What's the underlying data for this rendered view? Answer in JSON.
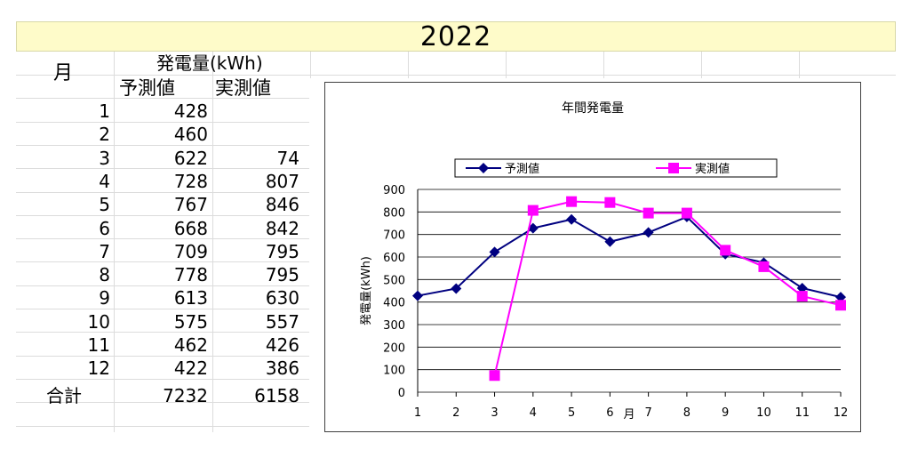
{
  "year_title": "2022",
  "table": {
    "month_header": "月",
    "gen_header": "発電量(kWh)",
    "pred_header": "予測値",
    "actual_header": "実測値",
    "rows": [
      {
        "month": "1",
        "pred": "428",
        "actual": ""
      },
      {
        "month": "2",
        "pred": "460",
        "actual": ""
      },
      {
        "month": "3",
        "pred": "622",
        "actual": "74"
      },
      {
        "month": "4",
        "pred": "728",
        "actual": "807"
      },
      {
        "month": "5",
        "pred": "767",
        "actual": "846"
      },
      {
        "month": "6",
        "pred": "668",
        "actual": "842"
      },
      {
        "month": "7",
        "pred": "709",
        "actual": "795"
      },
      {
        "month": "8",
        "pred": "778",
        "actual": "795"
      },
      {
        "month": "9",
        "pred": "613",
        "actual": "630"
      },
      {
        "month": "10",
        "pred": "575",
        "actual": "557"
      },
      {
        "month": "11",
        "pred": "462",
        "actual": "426"
      },
      {
        "month": "12",
        "pred": "422",
        "actual": "386"
      }
    ],
    "total_label": "合計",
    "total_pred": "7232",
    "total_actual": "6158"
  },
  "colors": {
    "title_bg": "#fefbc9",
    "series_pred": "#000080",
    "series_actual": "#ff00ff"
  },
  "chart_data": {
    "type": "line",
    "title": "年間発電量",
    "xlabel": "月",
    "ylabel": "発電量(kWh)",
    "x": [
      1,
      2,
      3,
      4,
      5,
      6,
      7,
      8,
      9,
      10,
      11,
      12
    ],
    "ylim": [
      0,
      900
    ],
    "yticks": [
      0,
      100,
      200,
      300,
      400,
      500,
      600,
      700,
      800,
      900
    ],
    "grid": true,
    "legend_position": "top",
    "series": [
      {
        "name": "予測値",
        "marker": "diamond",
        "color": "#000080",
        "values": [
          428,
          460,
          622,
          728,
          767,
          668,
          709,
          778,
          613,
          575,
          462,
          422
        ]
      },
      {
        "name": "実測値",
        "marker": "square",
        "color": "#ff00ff",
        "values": [
          null,
          null,
          74,
          807,
          846,
          842,
          795,
          795,
          630,
          557,
          426,
          386
        ]
      }
    ]
  }
}
